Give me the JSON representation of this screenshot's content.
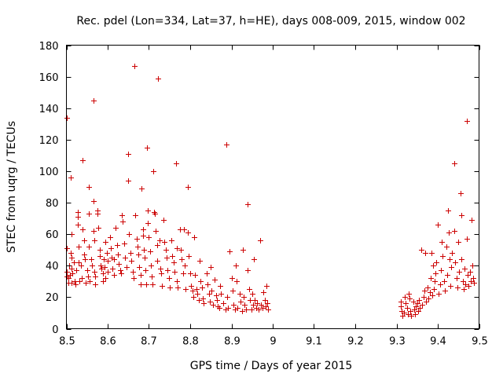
{
  "chart_data": {
    "type": "scatter",
    "title": "Rec. pdel (Lon=334, Lat=37, h=HE), days 008-009, 2015, window 002",
    "xlabel": "GPS time / Days of year 2015",
    "ylabel": "STEC from uqrg / TECUs",
    "xlim": [
      8.5,
      9.5
    ],
    "ylim": [
      0,
      180
    ],
    "xticks": [
      8.5,
      8.6,
      8.7,
      8.8,
      8.9,
      9.0,
      9.1,
      9.2,
      9.3,
      9.4,
      9.5
    ],
    "xtick_labels": [
      "8.5",
      "8.6",
      "8.7",
      "8.8",
      "8.9",
      "9",
      "9.1",
      "9.2",
      "9.3",
      "9.4",
      "9.5"
    ],
    "yticks": [
      0,
      20,
      40,
      60,
      80,
      100,
      120,
      140,
      160,
      180
    ],
    "ytick_labels": [
      "0",
      "20",
      "40",
      "60",
      "80",
      "100",
      "120",
      "140",
      "160",
      "180"
    ],
    "marker": "+",
    "color": "#cc0000",
    "series": [
      {
        "name": "STEC",
        "points": [
          [
            8.5,
            134
          ],
          [
            8.5,
            51
          ],
          [
            8.5,
            36
          ],
          [
            8.5,
            33
          ],
          [
            8.505,
            32
          ],
          [
            8.505,
            29
          ],
          [
            8.507,
            40
          ],
          [
            8.508,
            34
          ],
          [
            8.51,
            96
          ],
          [
            8.51,
            48
          ],
          [
            8.512,
            60
          ],
          [
            8.512,
            45
          ],
          [
            8.512,
            29
          ],
          [
            8.513,
            38
          ],
          [
            8.515,
            35
          ],
          [
            8.518,
            42
          ],
          [
            8.52,
            30
          ],
          [
            8.522,
            28
          ],
          [
            8.524,
            37
          ],
          [
            8.527,
            74
          ],
          [
            8.527,
            71
          ],
          [
            8.527,
            66
          ],
          [
            8.53,
            52
          ],
          [
            8.53,
            42
          ],
          [
            8.532,
            30
          ],
          [
            8.535,
            40
          ],
          [
            8.538,
            32
          ],
          [
            8.54,
            107
          ],
          [
            8.54,
            63
          ],
          [
            8.542,
            56
          ],
          [
            8.542,
            47
          ],
          [
            8.545,
            44
          ],
          [
            8.547,
            29
          ],
          [
            8.55,
            37
          ],
          [
            8.552,
            33
          ],
          [
            8.555,
            90
          ],
          [
            8.555,
            73
          ],
          [
            8.555,
            52
          ],
          [
            8.557,
            30
          ],
          [
            8.56,
            44
          ],
          [
            8.562,
            40
          ],
          [
            8.565,
            145
          ],
          [
            8.565,
            81
          ],
          [
            8.565,
            62
          ],
          [
            8.567,
            56
          ],
          [
            8.568,
            36
          ],
          [
            8.57,
            33
          ],
          [
            8.57,
            28
          ],
          [
            8.575,
            75
          ],
          [
            8.575,
            73
          ],
          [
            8.577,
            64
          ],
          [
            8.58,
            50
          ],
          [
            8.58,
            46
          ],
          [
            8.582,
            40
          ],
          [
            8.585,
            38
          ],
          [
            8.588,
            35
          ],
          [
            8.588,
            30
          ],
          [
            8.59,
            44
          ],
          [
            8.592,
            39
          ],
          [
            8.595,
            55
          ],
          [
            8.595,
            32
          ],
          [
            8.598,
            48
          ],
          [
            8.6,
            43
          ],
          [
            8.6,
            36
          ],
          [
            8.605,
            58
          ],
          [
            8.607,
            51
          ],
          [
            8.61,
            45
          ],
          [
            8.612,
            38
          ],
          [
            8.615,
            34
          ],
          [
            8.615,
            44
          ],
          [
            8.62,
            64
          ],
          [
            8.622,
            53
          ],
          [
            8.625,
            47
          ],
          [
            8.627,
            41
          ],
          [
            8.63,
            37
          ],
          [
            8.632,
            35
          ],
          [
            8.635,
            72
          ],
          [
            8.637,
            68
          ],
          [
            8.64,
            54
          ],
          [
            8.642,
            45
          ],
          [
            8.645,
            39
          ],
          [
            8.65,
            111
          ],
          [
            8.65,
            94
          ],
          [
            8.652,
            60
          ],
          [
            8.655,
            48
          ],
          [
            8.657,
            43
          ],
          [
            8.66,
            36
          ],
          [
            8.662,
            32
          ],
          [
            8.665,
            167
          ],
          [
            8.667,
            72
          ],
          [
            8.67,
            57
          ],
          [
            8.672,
            52
          ],
          [
            8.675,
            47
          ],
          [
            8.677,
            39
          ],
          [
            8.68,
            34
          ],
          [
            8.68,
            28
          ],
          [
            8.682,
            89
          ],
          [
            8.685,
            63
          ],
          [
            8.685,
            59
          ],
          [
            8.688,
            50
          ],
          [
            8.69,
            45
          ],
          [
            8.692,
            37
          ],
          [
            8.693,
            28
          ],
          [
            8.695,
            115
          ],
          [
            8.697,
            75
          ],
          [
            8.698,
            67
          ],
          [
            8.7,
            58
          ],
          [
            8.702,
            49
          ],
          [
            8.705,
            40
          ],
          [
            8.707,
            33
          ],
          [
            8.708,
            28
          ],
          [
            8.71,
            100
          ],
          [
            8.712,
            74
          ],
          [
            8.715,
            73
          ],
          [
            8.717,
            62
          ],
          [
            8.72,
            53
          ],
          [
            8.72,
            43
          ],
          [
            8.722,
            159
          ],
          [
            8.725,
            56
          ],
          [
            8.727,
            38
          ],
          [
            8.73,
            35
          ],
          [
            8.732,
            27
          ],
          [
            8.735,
            69
          ],
          [
            8.737,
            55
          ],
          [
            8.74,
            50
          ],
          [
            8.742,
            45
          ],
          [
            8.745,
            37
          ],
          [
            8.748,
            32
          ],
          [
            8.75,
            26
          ],
          [
            8.755,
            56
          ],
          [
            8.757,
            46
          ],
          [
            8.76,
            42
          ],
          [
            8.762,
            36
          ],
          [
            8.765,
            105
          ],
          [
            8.767,
            51
          ],
          [
            8.767,
            30
          ],
          [
            8.77,
            26
          ],
          [
            8.775,
            63
          ],
          [
            8.777,
            50
          ],
          [
            8.78,
            44
          ],
          [
            8.782,
            35
          ],
          [
            8.785,
            63
          ],
          [
            8.787,
            40
          ],
          [
            8.788,
            25
          ],
          [
            8.795,
            90
          ],
          [
            8.795,
            61
          ],
          [
            8.797,
            46
          ],
          [
            8.8,
            35
          ],
          [
            8.802,
            27
          ],
          [
            8.805,
            24
          ],
          [
            8.807,
            20
          ],
          [
            8.81,
            58
          ],
          [
            8.812,
            34
          ],
          [
            8.815,
            25
          ],
          [
            8.817,
            22
          ],
          [
            8.82,
            18
          ],
          [
            8.822,
            43
          ],
          [
            8.825,
            30
          ],
          [
            8.828,
            26
          ],
          [
            8.83,
            19
          ],
          [
            8.832,
            16
          ],
          [
            8.84,
            35
          ],
          [
            8.842,
            28
          ],
          [
            8.845,
            22
          ],
          [
            8.847,
            17
          ],
          [
            8.85,
            39
          ],
          [
            8.852,
            24
          ],
          [
            8.855,
            15
          ],
          [
            8.86,
            31
          ],
          [
            8.862,
            21
          ],
          [
            8.865,
            18
          ],
          [
            8.867,
            14
          ],
          [
            8.87,
            13
          ],
          [
            8.873,
            27
          ],
          [
            8.875,
            22
          ],
          [
            8.88,
            16
          ],
          [
            8.885,
            12
          ],
          [
            8.887,
            117
          ],
          [
            8.89,
            20
          ],
          [
            8.892,
            13
          ],
          [
            8.895,
            49
          ],
          [
            8.9,
            32
          ],
          [
            8.902,
            24
          ],
          [
            8.905,
            15
          ],
          [
            8.908,
            12
          ],
          [
            8.91,
            40
          ],
          [
            8.912,
            30
          ],
          [
            8.915,
            13
          ],
          [
            8.92,
            22
          ],
          [
            8.922,
            17
          ],
          [
            8.925,
            11
          ],
          [
            8.928,
            50
          ],
          [
            8.93,
            20
          ],
          [
            8.932,
            15
          ],
          [
            8.935,
            12
          ],
          [
            8.94,
            79
          ],
          [
            8.94,
            37
          ],
          [
            8.942,
            25
          ],
          [
            8.945,
            18
          ],
          [
            8.948,
            12
          ],
          [
            8.95,
            22
          ],
          [
            8.952,
            15
          ],
          [
            8.955,
            44
          ],
          [
            8.957,
            18
          ],
          [
            8.96,
            13
          ],
          [
            8.962,
            16
          ],
          [
            8.965,
            12
          ],
          [
            8.97,
            56
          ],
          [
            8.972,
            15
          ],
          [
            8.975,
            13
          ],
          [
            8.977,
            23
          ],
          [
            8.98,
            18
          ],
          [
            8.982,
            14
          ],
          [
            8.985,
            27
          ],
          [
            8.987,
            16
          ],
          [
            8.988,
            12
          ],
          [
            9.31,
            17
          ],
          [
            9.31,
            14
          ],
          [
            9.312,
            11
          ],
          [
            9.315,
            8
          ],
          [
            9.318,
            10
          ],
          [
            9.32,
            20
          ],
          [
            9.322,
            16
          ],
          [
            9.325,
            13
          ],
          [
            9.327,
            9
          ],
          [
            9.33,
            22
          ],
          [
            9.332,
            19
          ],
          [
            9.333,
            11
          ],
          [
            9.335,
            8
          ],
          [
            9.34,
            17
          ],
          [
            9.342,
            12
          ],
          [
            9.345,
            9
          ],
          [
            9.347,
            14
          ],
          [
            9.35,
            16
          ],
          [
            9.352,
            11
          ],
          [
            9.355,
            18
          ],
          [
            9.357,
            13
          ],
          [
            9.36,
            50
          ],
          [
            9.362,
            15
          ],
          [
            9.365,
            20
          ],
          [
            9.367,
            24
          ],
          [
            9.37,
            48
          ],
          [
            9.372,
            17
          ],
          [
            9.375,
            26
          ],
          [
            9.377,
            19
          ],
          [
            9.38,
            23
          ],
          [
            9.382,
            32
          ],
          [
            9.385,
            48
          ],
          [
            9.387,
            21
          ],
          [
            9.388,
            40
          ],
          [
            9.39,
            25
          ],
          [
            9.392,
            30
          ],
          [
            9.395,
            35
          ],
          [
            9.397,
            42
          ],
          [
            9.4,
            66
          ],
          [
            9.402,
            22
          ],
          [
            9.405,
            28
          ],
          [
            9.407,
            37
          ],
          [
            9.41,
            55
          ],
          [
            9.412,
            46
          ],
          [
            9.415,
            30
          ],
          [
            9.417,
            24
          ],
          [
            9.42,
            52
          ],
          [
            9.422,
            34
          ],
          [
            9.425,
            75
          ],
          [
            9.427,
            61
          ],
          [
            9.428,
            44
          ],
          [
            9.43,
            27
          ],
          [
            9.432,
            39
          ],
          [
            9.435,
            48
          ],
          [
            9.44,
            105
          ],
          [
            9.44,
            62
          ],
          [
            9.442,
            42
          ],
          [
            9.445,
            32
          ],
          [
            9.447,
            26
          ],
          [
            9.45,
            55
          ],
          [
            9.452,
            36
          ],
          [
            9.455,
            86
          ],
          [
            9.457,
            72
          ],
          [
            9.458,
            44
          ],
          [
            9.46,
            30
          ],
          [
            9.462,
            25
          ],
          [
            9.465,
            38
          ],
          [
            9.467,
            28
          ],
          [
            9.47,
            132
          ],
          [
            9.47,
            57
          ],
          [
            9.472,
            34
          ],
          [
            9.475,
            27
          ],
          [
            9.478,
            36
          ],
          [
            9.48,
            30
          ],
          [
            9.482,
            69
          ],
          [
            9.484,
            40
          ],
          [
            9.485,
            32
          ],
          [
            9.487,
            29
          ]
        ]
      }
    ]
  }
}
